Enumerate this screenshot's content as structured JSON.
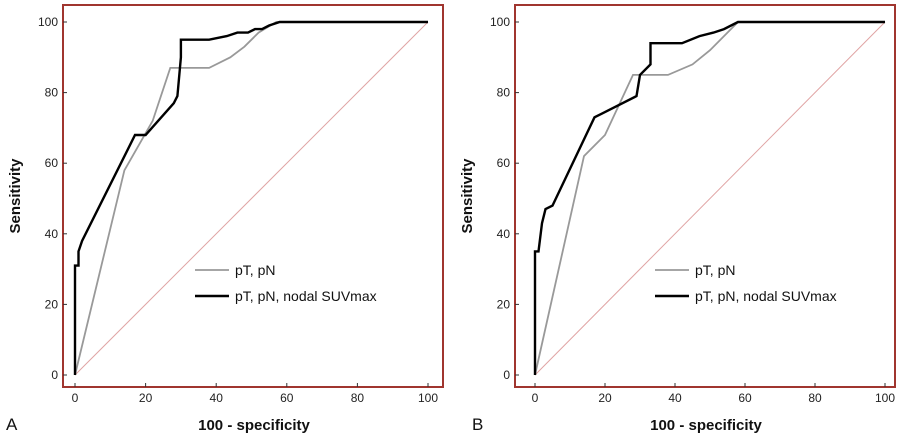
{
  "chart_data": [
    {
      "type": "line",
      "panel_label": "A",
      "xlabel": "100 - specificity",
      "ylabel": "Sensitivity",
      "xlim": [
        0,
        100
      ],
      "ylim": [
        0,
        100
      ],
      "xticks": [
        "0",
        "20",
        "40",
        "60",
        "80",
        "100"
      ],
      "yticks": [
        "0",
        "20",
        "40",
        "60",
        "80",
        "100"
      ],
      "frame_color": "#a0352f",
      "legend_position": "bottom-right",
      "series": [
        {
          "name": "pT, pN",
          "color": "#999999",
          "values": [
            [
              0,
              0
            ],
            [
              14,
              58
            ],
            [
              22,
              72
            ],
            [
              27,
              87
            ],
            [
              38,
              87
            ],
            [
              44,
              90
            ],
            [
              48,
              93
            ],
            [
              52,
              97
            ],
            [
              57,
              100
            ],
            [
              100,
              100
            ]
          ]
        },
        {
          "name": "pT, pN, nodal SUVmax",
          "color": "#000000",
          "values": [
            [
              0,
              0
            ],
            [
              0,
              31
            ],
            [
              1,
              31
            ],
            [
              1,
              35
            ],
            [
              2,
              38
            ],
            [
              17,
              68
            ],
            [
              20,
              68
            ],
            [
              28,
              77
            ],
            [
              29,
              79
            ],
            [
              30,
              90
            ],
            [
              30,
              95
            ],
            [
              38,
              95
            ],
            [
              43,
              96
            ],
            [
              46,
              97
            ],
            [
              49,
              97
            ],
            [
              51,
              98
            ],
            [
              53,
              98
            ],
            [
              55,
              99
            ],
            [
              58,
              100
            ],
            [
              100,
              100
            ]
          ]
        },
        {
          "name": "reference",
          "color": "#e0a4a4",
          "values": [
            [
              0,
              0
            ],
            [
              100,
              100
            ]
          ]
        }
      ]
    },
    {
      "type": "line",
      "panel_label": "B",
      "xlabel": "100 - specificity",
      "ylabel": "Sensitivity",
      "xlim": [
        0,
        100
      ],
      "ylim": [
        0,
        100
      ],
      "xticks": [
        "0",
        "20",
        "40",
        "60",
        "80",
        "100"
      ],
      "yticks": [
        "0",
        "20",
        "40",
        "60",
        "80",
        "100"
      ],
      "frame_color": "#a0352f",
      "legend_position": "bottom-right",
      "series": [
        {
          "name": "pT, pN",
          "color": "#999999",
          "values": [
            [
              0,
              0
            ],
            [
              14,
              62
            ],
            [
              20,
              68
            ],
            [
              28,
              85
            ],
            [
              38,
              85
            ],
            [
              45,
              88
            ],
            [
              50,
              92
            ],
            [
              58,
              100
            ],
            [
              100,
              100
            ]
          ]
        },
        {
          "name": "pT, pN, nodal SUVmax",
          "color": "#000000",
          "values": [
            [
              0,
              0
            ],
            [
              0,
              35
            ],
            [
              1,
              35
            ],
            [
              2,
              43
            ],
            [
              3,
              47
            ],
            [
              5,
              48
            ],
            [
              17,
              73
            ],
            [
              19,
              74
            ],
            [
              29,
              79
            ],
            [
              30,
              85
            ],
            [
              33,
              88
            ],
            [
              33,
              94
            ],
            [
              42,
              94
            ],
            [
              47,
              96
            ],
            [
              51,
              97
            ],
            [
              54,
              98
            ],
            [
              58,
              100
            ],
            [
              100,
              100
            ]
          ]
        },
        {
          "name": "reference",
          "color": "#e0a4a4",
          "values": [
            [
              0,
              0
            ],
            [
              100,
              100
            ]
          ]
        }
      ]
    }
  ]
}
